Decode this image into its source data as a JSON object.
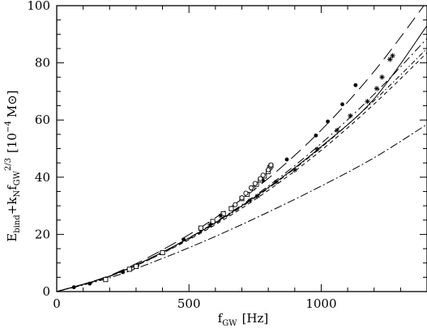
{
  "chart_data": {
    "type": "line",
    "xlabel": {
      "main": "f",
      "sub": "GW",
      "unit": "[Hz]"
    },
    "ylabel": {
      "pre": "E",
      "pre_sub": "bind",
      "mid": "+k",
      "mid_sub": "N",
      "f": "f",
      "f_sub": "GW",
      "f_sup": "2/3",
      "unit_open": "[10",
      "unit_exp": "−4",
      "unit_close": "M⊙]"
    },
    "xlim": [
      0,
      1400
    ],
    "ylim": [
      0,
      100
    ],
    "xticks": [
      0,
      500,
      1000
    ],
    "yticks": [
      0,
      20,
      40,
      60,
      80,
      100
    ],
    "xtick_labels": [
      "0",
      "500",
      "1000"
    ],
    "ytick_labels": [
      "0",
      "20",
      "40",
      "60",
      "80",
      "100"
    ],
    "grid": false,
    "series": [
      {
        "style": "long-dash",
        "x": [
          0,
          200,
          400,
          600,
          800,
          1000,
          1200,
          1400
        ],
        "y": [
          0,
          5.6,
          14.6,
          25.8,
          39.6,
          56.5,
          77.0,
          101.5
        ]
      },
      {
        "style": "dash-dot",
        "x": [
          0,
          200,
          400,
          600,
          800,
          1000,
          1200,
          1400
        ],
        "y": [
          0,
          5.4,
          13.8,
          24.3,
          36.9,
          51.8,
          69.0,
          88.5
        ]
      },
      {
        "style": "dash-dot-fine",
        "x": [
          0,
          200,
          400,
          600,
          800,
          1000,
          1200,
          1400
        ],
        "y": [
          0,
          5.3,
          13.5,
          23.8,
          36.1,
          50.4,
          66.8,
          85.0
        ]
      },
      {
        "style": "solid",
        "x": [
          0,
          200,
          400,
          600,
          800,
          1000,
          1200,
          1400
        ],
        "y": [
          0,
          5.4,
          13.8,
          24.1,
          36.4,
          50.7,
          67.4,
          93.0
        ]
      },
      {
        "style": "short-dash",
        "x": [
          0,
          200,
          400,
          600,
          800,
          1000,
          1200,
          1400
        ],
        "y": [
          0,
          5.3,
          13.4,
          23.4,
          35.4,
          49.4,
          65.6,
          83.5
        ]
      },
      {
        "style": "dash-dot-lower",
        "x": [
          0,
          200,
          400,
          600,
          800,
          1000,
          1200,
          1400
        ],
        "y": [
          0,
          4.8,
          11.6,
          19.3,
          27.8,
          36.9,
          46.8,
          58.5
        ]
      }
    ],
    "markers": [
      {
        "symbol": "dot",
        "x": [
          65,
          125,
          250,
          305,
          480,
          545,
          660,
          780,
          870,
          980,
          1025,
          1080,
          1130
        ],
        "y": [
          1.5,
          2.8,
          6.8,
          9.2,
          18.2,
          21.6,
          29.2,
          38.8,
          46.2,
          54.6,
          59.5,
          65.5,
          72.2
        ]
      },
      {
        "symbol": "open-square",
        "x": [
          185,
          275,
          300,
          400,
          545,
          590,
          630,
          660,
          700,
          720,
          740,
          755,
          770,
          785,
          800,
          805,
          810
        ],
        "y": [
          4.2,
          7.8,
          8.8,
          13.6,
          22.2,
          24.5,
          27.2,
          29.0,
          32.5,
          34.0,
          36.2,
          37.5,
          39.0,
          40.4,
          42.0,
          43.3,
          44.0
        ]
      },
      {
        "symbol": "star",
        "x": [
          580,
          620,
          730,
          760,
          830,
          900,
          985,
          1060,
          1110,
          1175,
          1210,
          1230,
          1260,
          1270
        ],
        "y": [
          23.4,
          26.5,
          31.8,
          33.4,
          38.3,
          42.5,
          49.8,
          56.4,
          61.5,
          66.5,
          71.0,
          75.0,
          81.2,
          82.5
        ]
      },
      {
        "symbol": "open-circle",
        "x": [
          675,
          700,
          715,
          735,
          750,
          770,
          780,
          800,
          810
        ],
        "y": [
          30.4,
          32.8,
          34.4,
          36.3,
          37.8,
          39.5,
          40.7,
          42.6,
          44.3
        ]
      }
    ]
  }
}
